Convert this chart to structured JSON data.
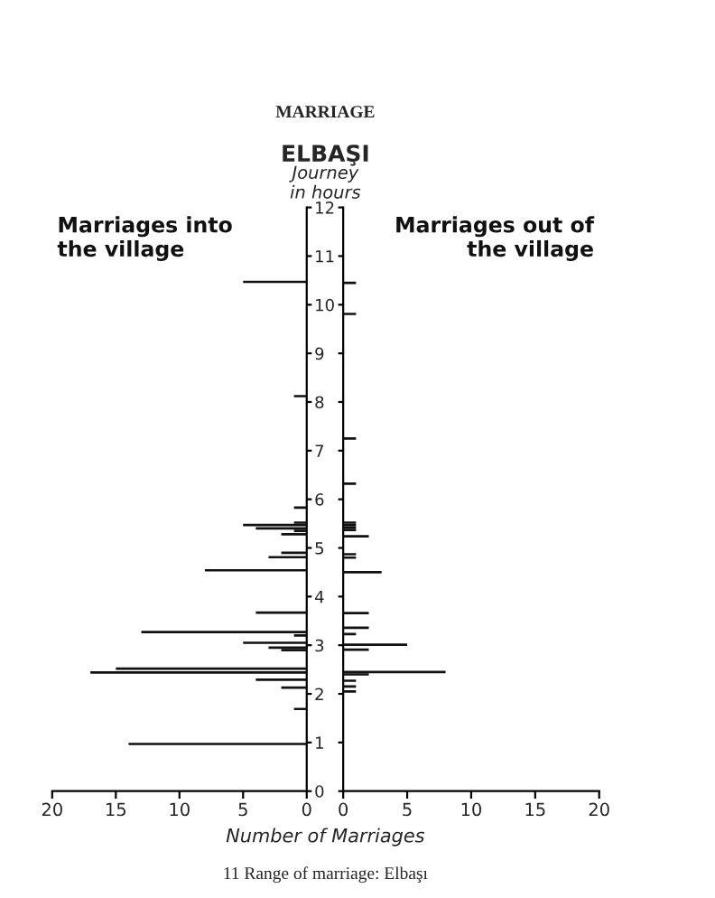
{
  "chart_data": [
    {
      "type": "bar",
      "orientation": "horizontal",
      "title": "ELBAŞI",
      "ylabel": "Journey\nin hours",
      "xlabel": "Number of Marriages",
      "annotations": [
        "MARRIAGE",
        "11 Range of marriage: Elbaşı"
      ],
      "x": [
        10.47,
        8.12,
        5.83,
        5.52,
        5.47,
        5.4,
        5.35,
        5.28,
        4.9,
        4.81,
        4.54,
        3.67,
        3.27,
        3.2,
        3.05,
        2.95,
        2.9,
        2.52,
        2.44,
        2.29,
        2.13,
        1.69,
        0.97
      ],
      "series": [
        {
          "name": "Marriages into\nthe village",
          "color": "#111111",
          "values": [
            5,
            1,
            1,
            1,
            5,
            4,
            1,
            2,
            2,
            3,
            8,
            4,
            13,
            1,
            5,
            3,
            2,
            15,
            17,
            4,
            2,
            1,
            14
          ]
        }
      ],
      "xlim": [
        20,
        0
      ],
      "xticks": [
        20,
        15,
        10,
        5,
        0
      ],
      "ylim": [
        0,
        12
      ],
      "yticks": [
        0,
        1,
        2,
        3,
        4,
        5,
        6,
        7,
        8,
        9,
        10,
        11,
        12
      ]
    },
    {
      "type": "bar",
      "orientation": "horizontal",
      "x": [
        10.45,
        9.81,
        7.25,
        6.32,
        5.52,
        5.47,
        5.42,
        5.37,
        5.24,
        4.87,
        4.8,
        4.5,
        3.66,
        3.36,
        3.23,
        3.01,
        2.91,
        2.45,
        2.4,
        2.27,
        2.15,
        2.05
      ],
      "series": [
        {
          "name": "Marriages out of\nthe village",
          "color": "#111111",
          "values": [
            1,
            1,
            1,
            1,
            1,
            1,
            1,
            1,
            2,
            1,
            1,
            3,
            2,
            2,
            1,
            5,
            2,
            8,
            2,
            1,
            1,
            1
          ]
        }
      ],
      "xlim": [
        0,
        20
      ],
      "xticks": [
        0,
        5,
        10,
        15,
        20
      ],
      "ylim": [
        0,
        12
      ],
      "yticks": [
        0,
        1,
        2,
        3,
        4,
        5,
        6,
        7,
        8,
        9,
        10,
        11,
        12
      ],
      "tick_labels": "x"
    }
  ]
}
